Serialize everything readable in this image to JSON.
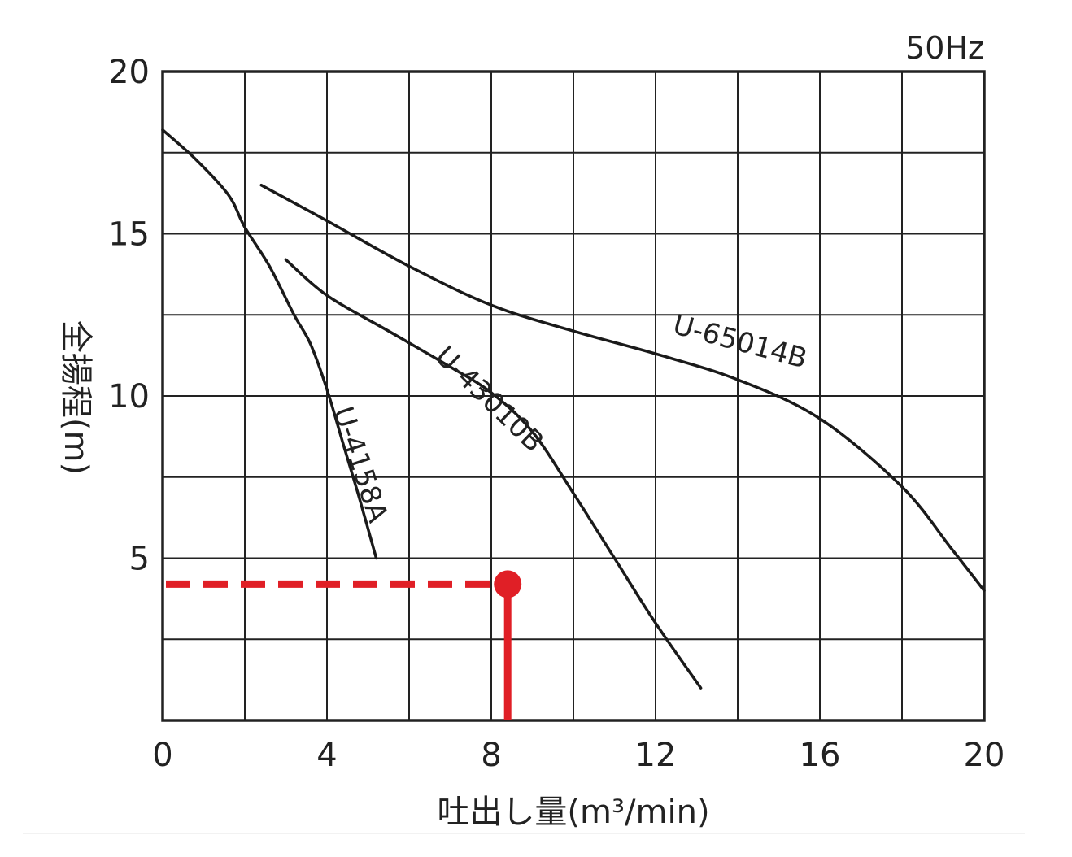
{
  "chart_data": {
    "type": "line",
    "title": "",
    "corner_label": "50Hz",
    "xlabel": "吐出し量(m³/min)",
    "ylabel": "全揚程(m)",
    "xlim": [
      0,
      20
    ],
    "ylim": [
      0,
      20
    ],
    "x_ticks": [
      0,
      4,
      8,
      12,
      16,
      20
    ],
    "y_ticks": [
      5,
      10,
      15,
      20
    ],
    "grid": true,
    "grid_step_x": 2,
    "grid_step_y": 2.5,
    "series": [
      {
        "name": "U-4158A",
        "color": "#1a1a1a",
        "points": [
          [
            0,
            18.2
          ],
          [
            0.8,
            17.3
          ],
          [
            1.6,
            16.2
          ],
          [
            2.0,
            15.2
          ],
          [
            2.6,
            14.0
          ],
          [
            3.2,
            12.5
          ],
          [
            3.6,
            11.6
          ],
          [
            4.0,
            10.2
          ],
          [
            4.4,
            8.5
          ],
          [
            4.8,
            6.8
          ],
          [
            5.2,
            5.0
          ]
        ]
      },
      {
        "name": "U-43010B",
        "color": "#1a1a1a",
        "points": [
          [
            3.0,
            14.2
          ],
          [
            4.0,
            13.1
          ],
          [
            5.5,
            12.0
          ],
          [
            7.0,
            10.9
          ],
          [
            8.0,
            10.1
          ],
          [
            9.0,
            8.9
          ],
          [
            10.0,
            7.0
          ],
          [
            11.0,
            5.0
          ],
          [
            12.0,
            3.0
          ],
          [
            13.1,
            1.0
          ]
        ]
      },
      {
        "name": "U-65014B",
        "color": "#1a1a1a",
        "points": [
          [
            2.4,
            16.5
          ],
          [
            4.0,
            15.4
          ],
          [
            6.0,
            14.0
          ],
          [
            8.0,
            12.8
          ],
          [
            10.0,
            12.0
          ],
          [
            12.0,
            11.3
          ],
          [
            14.0,
            10.5
          ],
          [
            16.0,
            9.3
          ],
          [
            18.0,
            7.2
          ],
          [
            19.2,
            5.3
          ],
          [
            20.0,
            4.0
          ]
        ]
      }
    ],
    "annotation": {
      "point": [
        8.4,
        4.2
      ],
      "color": "#e01f26",
      "horizontal_guide": "dashed",
      "vertical_guide": "solid"
    }
  }
}
